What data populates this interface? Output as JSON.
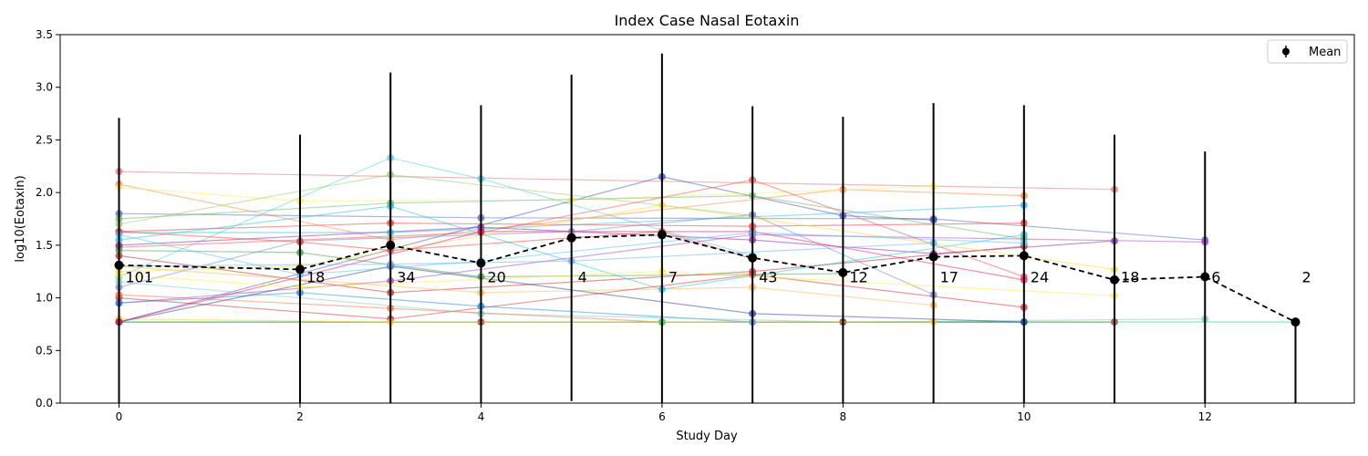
{
  "chart_data": {
    "type": "line",
    "title": "Index Case Nasal Eotaxin",
    "xlabel": "Study Day",
    "ylabel": "log10(Eotaxin)",
    "xlim": [
      -0.65,
      13.65
    ],
    "ylim": [
      0.0,
      3.5
    ],
    "x_ticks": [
      0,
      2,
      4,
      6,
      8,
      10,
      12
    ],
    "y_ticks": [
      0.0,
      0.5,
      1.0,
      1.5,
      2.0,
      2.5,
      3.0,
      3.5
    ],
    "legend": {
      "position": "top-right",
      "entries": [
        "Mean"
      ]
    },
    "grid": false,
    "mean_series": {
      "name": "Mean",
      "color": "#000000",
      "x": [
        0,
        2,
        3,
        4,
        5,
        6,
        7,
        8,
        9,
        10,
        11,
        12,
        13
      ],
      "y": [
        1.31,
        1.27,
        1.5,
        1.33,
        1.57,
        1.6,
        1.38,
        1.24,
        1.39,
        1.4,
        1.17,
        1.2,
        0.77
      ],
      "err_low": [
        0.0,
        0.0,
        0.0,
        0.0,
        0.02,
        0.0,
        0.0,
        0.0,
        0.0,
        0.0,
        0.0,
        0.0,
        0.0
      ],
      "err_high": [
        2.71,
        2.55,
        3.14,
        2.83,
        3.12,
        3.32,
        2.82,
        2.72,
        2.85,
        2.83,
        2.55,
        2.39,
        0.77
      ]
    },
    "count_labels": [
      {
        "x": 0,
        "text": "101"
      },
      {
        "x": 2,
        "text": "18"
      },
      {
        "x": 3,
        "text": "34"
      },
      {
        "x": 4,
        "text": "20"
      },
      {
        "x": 5,
        "text": "4"
      },
      {
        "x": 6,
        "text": "7"
      },
      {
        "x": 7,
        "text": "43"
      },
      {
        "x": 8,
        "text": "12"
      },
      {
        "x": 9,
        "text": "17"
      },
      {
        "x": 10,
        "text": "24"
      },
      {
        "x": 11,
        "text": "18"
      },
      {
        "x": 12,
        "text": "6"
      },
      {
        "x": 13,
        "text": "2"
      }
    ],
    "subject_series": [
      {
        "color": "#e57373",
        "points": [
          [
            0,
            2.2
          ],
          [
            11,
            2.03
          ]
        ]
      },
      {
        "color": "#ff8c42",
        "points": [
          [
            0,
            2.08
          ],
          [
            3,
            1.55
          ],
          [
            8,
            2.03
          ],
          [
            10,
            1.97
          ]
        ]
      },
      {
        "color": "#4dd0e1",
        "points": [
          [
            0,
            1.2
          ],
          [
            3,
            2.33
          ],
          [
            4,
            2.13
          ],
          [
            7,
            1.4
          ]
        ]
      },
      {
        "color": "#5c6bc0",
        "points": [
          [
            0,
            1.8
          ],
          [
            4,
            1.76
          ],
          [
            9,
            1.75
          ],
          [
            12,
            1.55
          ]
        ]
      },
      {
        "color": "#3f51b5",
        "points": [
          [
            0,
            0.77
          ],
          [
            6,
            2.15
          ],
          [
            8,
            1.78
          ],
          [
            9,
            1.74
          ]
        ]
      },
      {
        "color": "#ffee58",
        "points": [
          [
            0,
            2.05
          ],
          [
            2,
            1.92
          ],
          [
            5,
            1.93
          ],
          [
            9,
            2.06
          ]
        ]
      },
      {
        "color": "#66bb6a",
        "points": [
          [
            0,
            1.75
          ],
          [
            3,
            1.9
          ],
          [
            7,
            1.97
          ],
          [
            10,
            1.56
          ]
        ]
      },
      {
        "color": "#9ccc65",
        "points": [
          [
            0,
            1.7
          ],
          [
            3,
            2.17
          ],
          [
            7,
            1.78
          ]
        ]
      },
      {
        "color": "#e53935",
        "points": [
          [
            0,
            1.63
          ],
          [
            3,
            1.71
          ],
          [
            7,
            1.68
          ],
          [
            10,
            1.71
          ]
        ]
      },
      {
        "color": "#ef5350",
        "points": [
          [
            0,
            1.48
          ],
          [
            4,
            1.62
          ],
          [
            7,
            2.12
          ],
          [
            10,
            1.2
          ]
        ]
      },
      {
        "color": "#8e24aa",
        "points": [
          [
            0,
            1.5
          ],
          [
            4,
            1.67
          ],
          [
            7,
            1.55
          ],
          [
            9,
            1.42
          ],
          [
            11,
            1.54
          ]
        ]
      },
      {
        "color": "#29b6f6",
        "points": [
          [
            0,
            1.62
          ],
          [
            3,
            1.62
          ],
          [
            10,
            1.88
          ]
        ]
      },
      {
        "color": "#7986cb",
        "points": [
          [
            0,
            1.1
          ],
          [
            2,
            1.54
          ],
          [
            5,
            1.63
          ],
          [
            7,
            1.79
          ],
          [
            9,
            1.03
          ]
        ]
      },
      {
        "color": "#c62828",
        "points": [
          [
            0,
            1.4
          ],
          [
            3,
            1.05
          ],
          [
            7,
            1.25
          ],
          [
            10,
            1.49
          ]
        ]
      },
      {
        "color": "#ffb74d",
        "points": [
          [
            0,
            1.3
          ],
          [
            4,
            1.05
          ],
          [
            7,
            1.1
          ],
          [
            9,
            0.93
          ]
        ]
      },
      {
        "color": "#26c6da",
        "points": [
          [
            0,
            1.55
          ],
          [
            3,
            1.87
          ],
          [
            6,
            1.08
          ],
          [
            10,
            1.6
          ]
        ]
      },
      {
        "color": "#ab47bc",
        "points": [
          [
            0,
            0.95
          ],
          [
            3,
            1.16
          ],
          [
            7,
            1.6
          ],
          [
            12,
            1.53
          ]
        ]
      },
      {
        "color": "#d32f2f",
        "points": [
          [
            0,
            1.0
          ],
          [
            3,
            0.8
          ],
          [
            7,
            1.22
          ],
          [
            10,
            0.91
          ]
        ]
      },
      {
        "color": "#fdd835",
        "points": [
          [
            0,
            1.25
          ],
          [
            2,
            1.3
          ],
          [
            6,
            1.88
          ],
          [
            11,
            1.27
          ]
        ]
      },
      {
        "color": "#43a047",
        "points": [
          [
            0,
            1.45
          ],
          [
            2,
            1.43
          ],
          [
            4,
            1.2
          ],
          [
            8,
            1.23
          ]
        ]
      },
      {
        "color": "#1e88e5",
        "points": [
          [
            0,
            0.95
          ],
          [
            2,
            1.05
          ],
          [
            4,
            0.92
          ],
          [
            7,
            0.77
          ],
          [
            10,
            0.77
          ]
        ]
      },
      {
        "color": "#80cbc4",
        "points": [
          [
            0,
            1.15
          ],
          [
            4,
            0.85
          ],
          [
            8,
            0.77
          ],
          [
            12,
            0.8
          ]
        ]
      },
      {
        "color": "#ff7043",
        "points": [
          [
            0,
            1.03
          ],
          [
            3,
            0.9
          ],
          [
            6,
            0.77
          ]
        ]
      },
      {
        "color": "#b71c1c",
        "points": [
          [
            0,
            0.77
          ],
          [
            4,
            0.77
          ],
          [
            8,
            0.77
          ],
          [
            11,
            0.77
          ]
        ]
      },
      {
        "color": "#00e676",
        "points": [
          [
            0,
            0.77
          ],
          [
            6,
            0.77
          ],
          [
            10,
            0.77
          ],
          [
            13,
            0.77
          ]
        ]
      },
      {
        "color": "#ffca28",
        "points": [
          [
            0,
            0.8
          ],
          [
            3,
            0.77
          ],
          [
            9,
            0.77
          ]
        ]
      },
      {
        "color": "#303f9f",
        "points": [
          [
            0,
            0.77
          ],
          [
            3,
            1.3
          ],
          [
            7,
            0.85
          ],
          [
            10,
            0.77
          ]
        ]
      },
      {
        "color": "#e91e63",
        "points": [
          [
            0,
            0.77
          ],
          [
            4,
            1.63
          ],
          [
            7,
            1.63
          ],
          [
            10,
            1.17
          ]
        ]
      },
      {
        "color": "#ffeb3b",
        "points": [
          [
            0,
            1.22
          ],
          [
            2,
            1.1
          ],
          [
            6,
            1.25
          ],
          [
            11,
            1.02
          ]
        ]
      },
      {
        "color": "#64b5f6",
        "points": [
          [
            0,
            1.3
          ],
          [
            3,
            1.32
          ],
          [
            5,
            1.35
          ],
          [
            9,
            1.52
          ]
        ]
      },
      {
        "color": "#f44336",
        "points": [
          [
            0,
            1.63
          ],
          [
            2,
            1.53
          ],
          [
            3,
            1.45
          ],
          [
            6,
            1.63
          ],
          [
            7,
            1.37
          ]
        ]
      },
      {
        "color": "#4fc3f7",
        "points": [
          [
            0,
            1.6
          ],
          [
            2,
            1.22
          ],
          [
            4,
            1.35
          ],
          [
            7,
            1.62
          ],
          [
            10,
            1.52
          ]
        ]
      }
    ]
  }
}
